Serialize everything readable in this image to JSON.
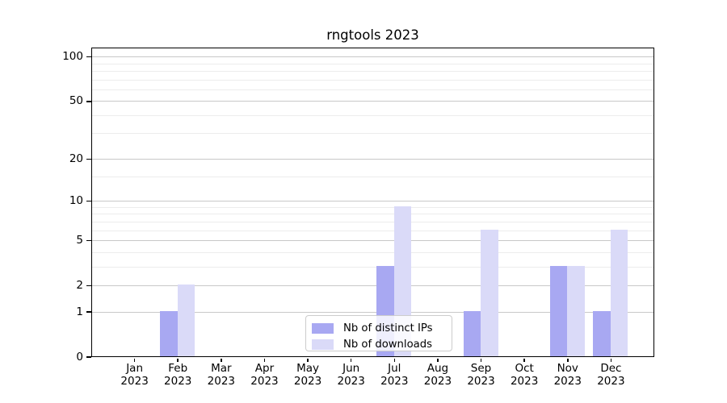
{
  "chart_data": {
    "type": "bar",
    "title": "rngtools 2023",
    "categories": [
      "Jan 2023",
      "Feb 2023",
      "Mar 2023",
      "Apr 2023",
      "May 2023",
      "Jun 2023",
      "Jul 2023",
      "Aug 2023",
      "Sep 2023",
      "Oct 2023",
      "Nov 2023",
      "Dec 2023"
    ],
    "series": [
      {
        "name": "Nb of distinct IPs",
        "color": "#a8a8f2",
        "values": [
          0,
          1,
          0,
          0,
          0,
          0,
          3,
          0,
          1,
          0,
          3,
          1
        ]
      },
      {
        "name": "Nb of downloads",
        "color": "#dadaf8",
        "values": [
          0,
          2,
          0,
          0,
          0,
          0,
          9,
          0,
          6,
          0,
          3,
          6
        ]
      }
    ],
    "xlabel": "",
    "ylabel": "",
    "y_scale": "log1p",
    "y_axis": {
      "major_ticks": [
        0,
        1,
        2,
        5,
        10,
        20,
        50,
        100
      ],
      "minor_ticks": [
        3,
        4,
        6,
        7,
        8,
        9,
        15,
        30,
        40,
        60,
        70,
        80,
        90
      ],
      "range_max": 115
    },
    "grid": "horizontal",
    "legend": {
      "position": "lower center",
      "frame": true
    }
  },
  "colors": {
    "major_grid": "#c8c8c8",
    "minor_grid": "#ececec",
    "axis_frame": "#000000",
    "background": "#ffffff"
  }
}
